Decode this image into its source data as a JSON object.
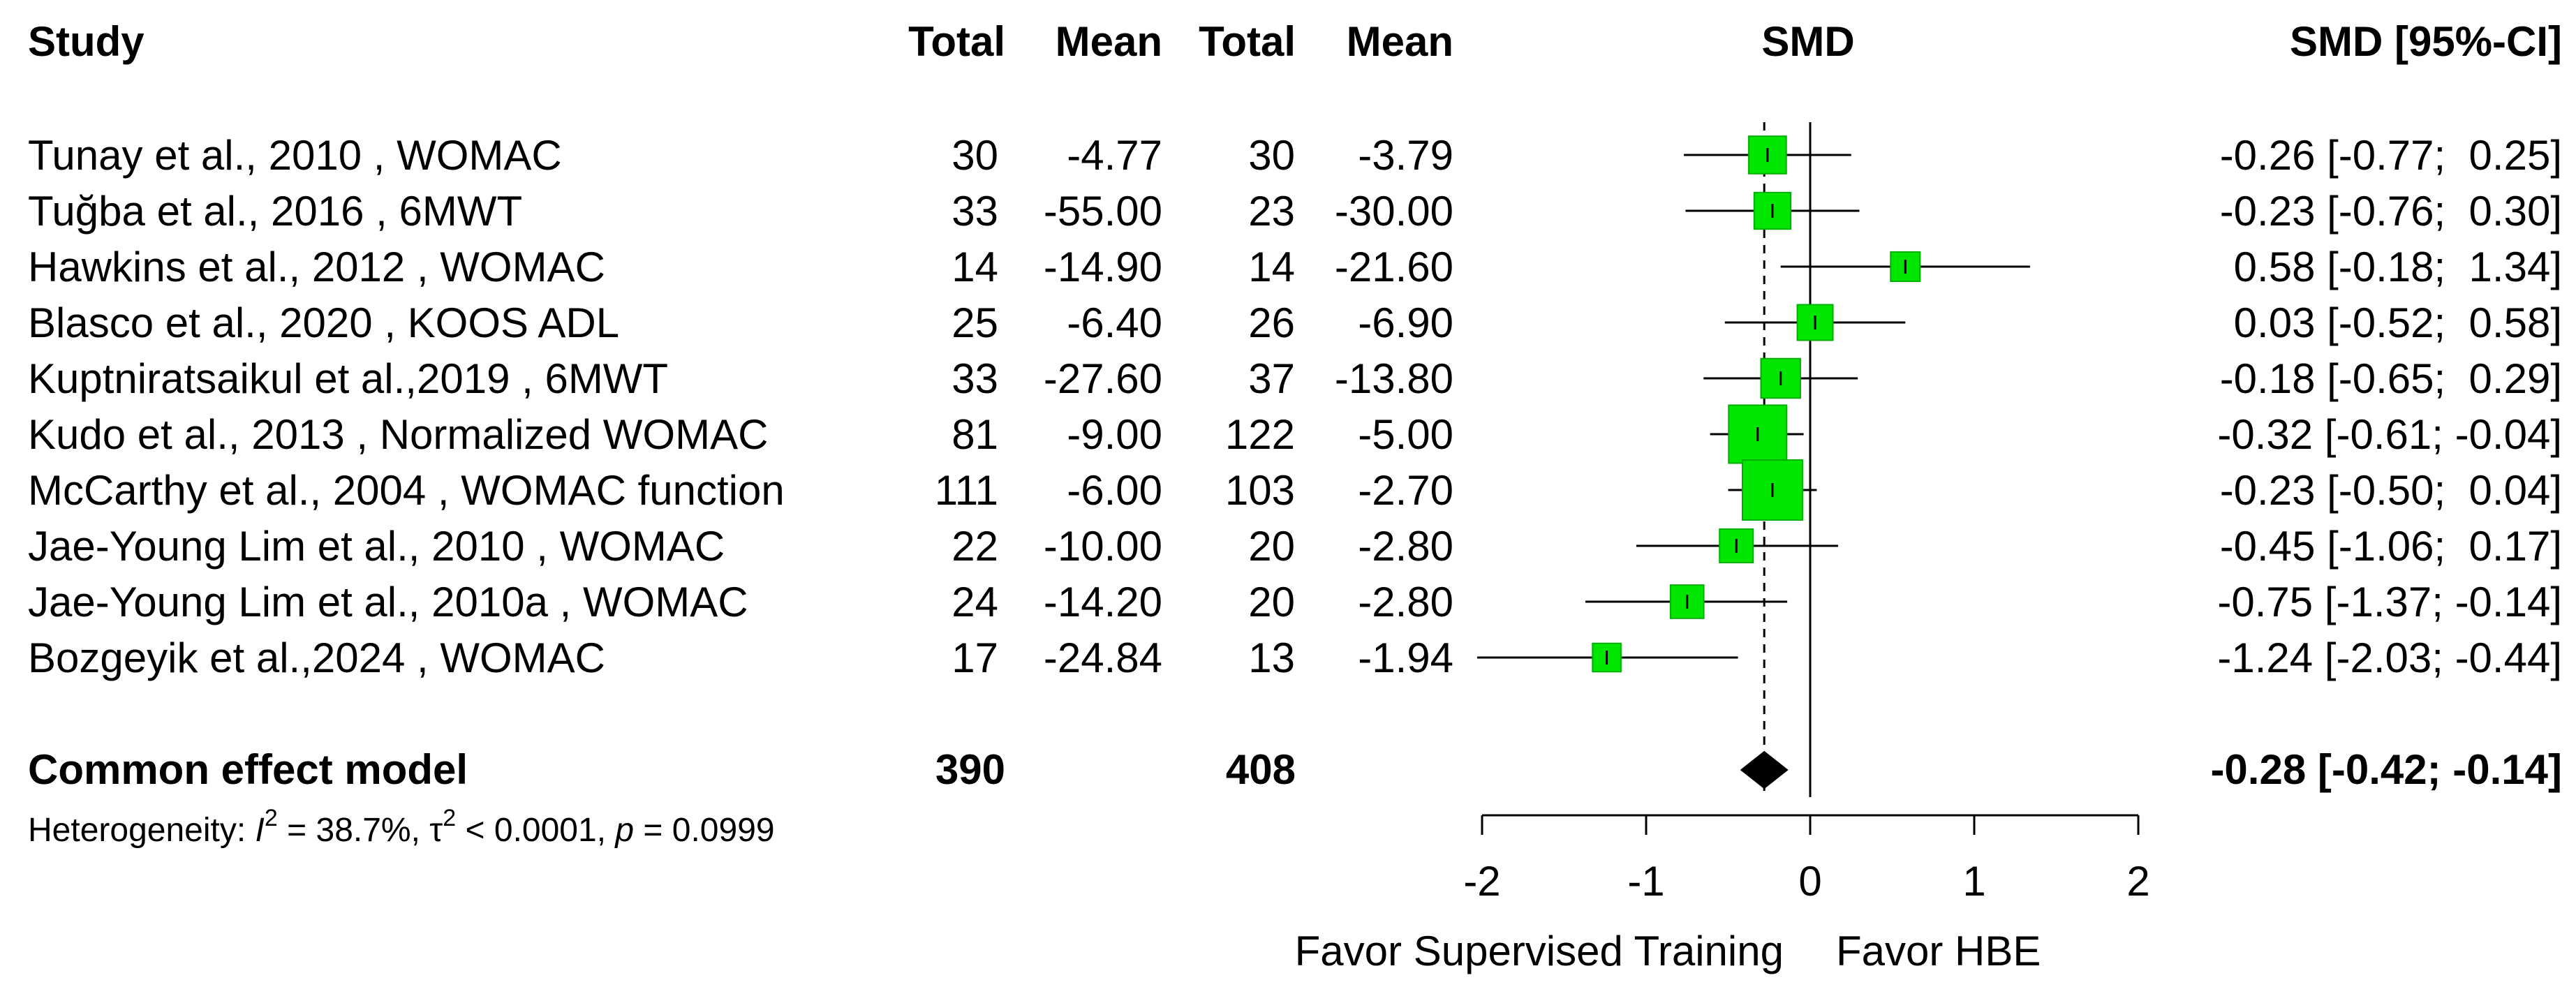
{
  "chart_data": {
    "type": "forest",
    "headers": {
      "study": "Study",
      "exp_total": "Total",
      "exp_mean": "Mean",
      "ctl_total": "Total",
      "ctl_mean": "Mean",
      "plot": "SMD",
      "ci": "SMD [95%-CI]"
    },
    "studies": [
      {
        "label": "Tunay et al., 2010 , WOMAC",
        "exp_total": "30",
        "exp_mean": "-4.77",
        "ctl_total": "30",
        "ctl_mean": "-3.79",
        "ci_text": "-0.26 [-0.77;  0.25]",
        "smd": -0.26,
        "lower": -0.77,
        "upper": 0.25,
        "weight": 5.5
      },
      {
        "label": "Tuğba et al., 2016 , 6MWT",
        "exp_total": "33",
        "exp_mean": "-55.00",
        "ctl_total": "23",
        "ctl_mean": "-30.00",
        "ci_text": "-0.23 [-0.76;  0.30]",
        "smd": -0.23,
        "lower": -0.76,
        "upper": 0.3,
        "weight": 5.1
      },
      {
        "label": "Hawkins et al., 2012 , WOMAC",
        "exp_total": "14",
        "exp_mean": "-14.90",
        "ctl_total": "14",
        "ctl_mean": "-21.60",
        "ci_text": "0.58 [-0.18;  1.34]",
        "smd": 0.58,
        "lower": -0.18,
        "upper": 1.34,
        "weight": 2.5
      },
      {
        "label": "Blasco et al., 2020 , KOOS ADL",
        "exp_total": "25",
        "exp_mean": "-6.40",
        "ctl_total": "26",
        "ctl_mean": "-6.90",
        "ci_text": "0.03 [-0.52;  0.58]",
        "smd": 0.03,
        "lower": -0.52,
        "upper": 0.58,
        "weight": 4.7
      },
      {
        "label": "Kuptniratsaikul et al.,2019 , 6MWT",
        "exp_total": "33",
        "exp_mean": "-27.60",
        "ctl_total": "37",
        "ctl_mean": "-13.80",
        "ci_text": "-0.18 [-0.65;  0.29]",
        "smd": -0.18,
        "lower": -0.65,
        "upper": 0.29,
        "weight": 6.4
      },
      {
        "label": "Kudo et al., 2013 , Normalized WOMAC",
        "exp_total": "81",
        "exp_mean": "-9.00",
        "ctl_total": "122",
        "ctl_mean": "-5.00",
        "ci_text": "-0.32 [-0.61; -0.04]",
        "smd": -0.32,
        "lower": -0.61,
        "upper": -0.04,
        "weight": 18.3
      },
      {
        "label": "McCarthy et al., 2004 , WOMAC function",
        "exp_total": "111",
        "exp_mean": "-6.00",
        "ctl_total": "103",
        "ctl_mean": "-2.70",
        "ci_text": "-0.23 [-0.50;  0.04]",
        "smd": -0.23,
        "lower": -0.5,
        "upper": 0.04,
        "weight": 20.0
      },
      {
        "label": "Jae-Young Lim et al., 2010 , WOMAC",
        "exp_total": "22",
        "exp_mean": "-10.00",
        "ctl_total": "20",
        "ctl_mean": "-2.80",
        "ci_text": "-0.45 [-1.06;  0.17]",
        "smd": -0.45,
        "lower": -1.06,
        "upper": 0.17,
        "weight": 3.9
      },
      {
        "label": "Jae-Young Lim et al., 2010a , WOMAC",
        "exp_total": "24",
        "exp_mean": "-14.20",
        "ctl_total": "20",
        "ctl_mean": "-2.80",
        "ci_text": "-0.75 [-1.37; -0.14]",
        "smd": -0.75,
        "lower": -1.37,
        "upper": -0.14,
        "weight": 3.8
      },
      {
        "label": "Bozgeyik et al.,2024 , WOMAC",
        "exp_total": "17",
        "exp_mean": "-24.84",
        "ctl_total": "13",
        "ctl_mean": "-1.94",
        "ci_text": "-1.24 [-2.03; -0.44]",
        "smd": -1.24,
        "lower": -2.03,
        "upper": -0.44,
        "weight": 2.2
      }
    ],
    "summary": {
      "label": "Common effect model",
      "exp_total": "390",
      "ctl_total": "408",
      "ci_text": "-0.28 [-0.42; -0.14]",
      "smd": -0.28,
      "lower": -0.42,
      "upper": -0.14
    },
    "heterogeneity": {
      "prefix": "Heterogeneity: ",
      "i2_symbol": "I",
      "i2_exp": "2",
      "i2_value": " = 38.7%, ",
      "tau_symbol": "τ",
      "tau_exp": "2",
      "tau_value": " < 0.0001, ",
      "p_symbol": "p",
      "p_value": " = 0.0999"
    },
    "x_axis": {
      "range": [
        -2,
        2
      ],
      "ticks": [
        -2,
        -1,
        0,
        1,
        2
      ],
      "tick_labels": [
        "-2",
        "-1",
        "0",
        "1",
        "2"
      ],
      "label_left": "Favor Supervised Training",
      "label_right": "Favor HBE"
    },
    "colors": {
      "square": "#00e600",
      "square_edge": "#00b000",
      "diamond": "#000000",
      "line": "#000000"
    }
  }
}
